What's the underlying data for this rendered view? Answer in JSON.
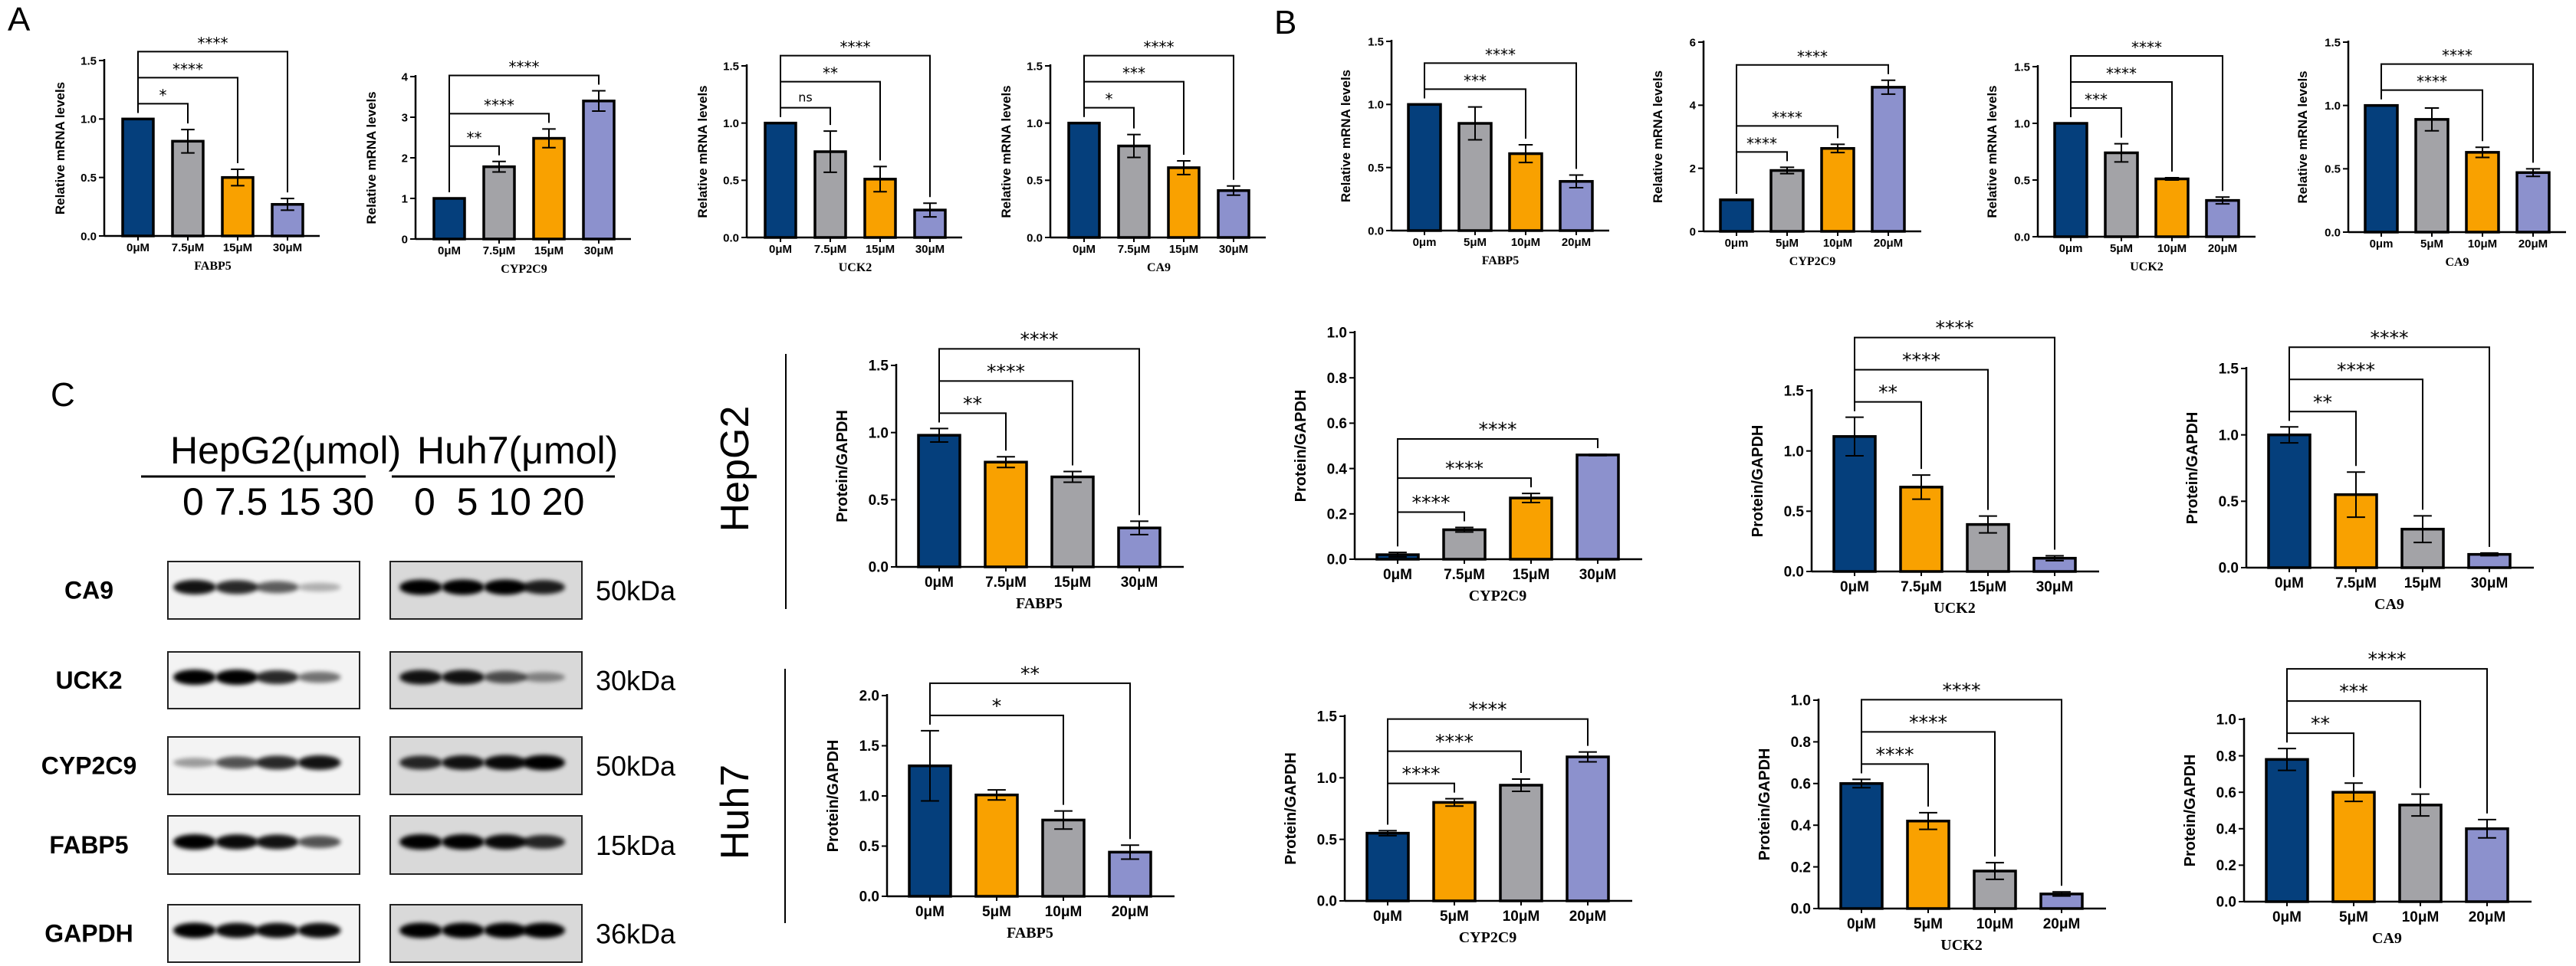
{
  "panels": {
    "a": "A",
    "b": "B",
    "c": "C"
  },
  "colors": {
    "navy": "#053f7c",
    "gray": "#a3a3a7",
    "orange": "#f9a100",
    "lavender": "#8c91cd"
  },
  "row_labels": {
    "hepg2": "HepG2",
    "huh7": "Huh7"
  },
  "blot": {
    "headers": [
      {
        "title": "HepG2(μmol)",
        "doses": "0 7.5 15 30"
      },
      {
        "title": "Huh7(μmol)",
        "doses": "0  5 10 20"
      }
    ],
    "rows": [
      {
        "protein": "CA9",
        "kda": "50kDa",
        "hepg2": [
          0.9,
          0.8,
          0.55,
          0.15
        ],
        "huh7": [
          1,
          1,
          1,
          0.85
        ]
      },
      {
        "protein": "UCK2",
        "kda": "30kDa",
        "hepg2": [
          1,
          1,
          0.8,
          0.45
        ],
        "huh7": [
          0.9,
          0.9,
          0.6,
          0.3
        ]
      },
      {
        "protein": "CYP2C9",
        "kda": "50kDa",
        "hepg2": [
          0.25,
          0.6,
          0.8,
          0.9
        ],
        "huh7": [
          0.8,
          0.9,
          0.95,
          1
        ]
      },
      {
        "protein": "FABP5",
        "kda": "15kDa",
        "hepg2": [
          1,
          0.95,
          0.9,
          0.6
        ],
        "huh7": [
          1,
          1,
          0.95,
          0.8
        ]
      },
      {
        "protein": "GAPDH",
        "kda": "36kDa",
        "hepg2": [
          1,
          0.95,
          0.95,
          0.95
        ],
        "huh7": [
          1,
          1,
          1,
          1
        ]
      }
    ]
  },
  "chart_data": [
    {
      "panel": "A",
      "type": "bar",
      "xlabel": "FABP5",
      "ylabel": "Relative mRNA levels",
      "categories": [
        "0μM",
        "7.5μM",
        "15μM",
        "30μM"
      ],
      "values": [
        1.0,
        0.81,
        0.5,
        0.27
      ],
      "sd": [
        0,
        0.1,
        0.07,
        0.05
      ],
      "ylim": [
        0,
        1.5
      ],
      "yticks": [
        0,
        0.5,
        1.0,
        1.5
      ],
      "ytick_labels": [
        "0.0",
        "0.5",
        "1.0",
        "1.5"
      ],
      "bar_colors": [
        "navy",
        "gray",
        "orange",
        "lavender"
      ],
      "comparisons": [
        {
          "to": 1,
          "label": "*"
        },
        {
          "to": 2,
          "label": "****"
        },
        {
          "to": 3,
          "label": "****"
        }
      ]
    },
    {
      "panel": "A",
      "type": "bar",
      "xlabel": "CYP2C9",
      "ylabel": "Relative mRNA levels",
      "categories": [
        "0μM",
        "7.5μM",
        "15μM",
        "30μM"
      ],
      "values": [
        1.0,
        1.78,
        2.48,
        3.4
      ],
      "sd": [
        0,
        0.13,
        0.23,
        0.25
      ],
      "ylim": [
        0,
        4
      ],
      "yticks": [
        0,
        1,
        2,
        3,
        4
      ],
      "ytick_labels": [
        "0",
        "1",
        "2",
        "3",
        "4"
      ],
      "bar_colors": [
        "navy",
        "gray",
        "orange",
        "lavender"
      ],
      "comparisons": [
        {
          "to": 1,
          "label": "**"
        },
        {
          "to": 2,
          "label": "****"
        },
        {
          "to": 3,
          "label": "****"
        }
      ]
    },
    {
      "panel": "A",
      "type": "bar",
      "xlabel": "UCK2",
      "ylabel": "Relative mRNA levels",
      "categories": [
        "0μM",
        "7.5μM",
        "15μM",
        "30μM"
      ],
      "values": [
        1.0,
        0.75,
        0.51,
        0.24
      ],
      "sd": [
        0,
        0.18,
        0.11,
        0.06
      ],
      "ylim": [
        0,
        1.5
      ],
      "yticks": [
        0,
        0.5,
        1.0,
        1.5
      ],
      "ytick_labels": [
        "0.0",
        "0.5",
        "1.0",
        "1.5"
      ],
      "bar_colors": [
        "navy",
        "gray",
        "orange",
        "lavender"
      ],
      "comparisons": [
        {
          "to": 1,
          "label": "ns"
        },
        {
          "to": 2,
          "label": "**"
        },
        {
          "to": 3,
          "label": "****"
        }
      ]
    },
    {
      "panel": "A",
      "type": "bar",
      "xlabel": "CA9",
      "ylabel": "Relative mRNA levels",
      "categories": [
        "0μM",
        "7.5μM",
        "15μM",
        "30μM"
      ],
      "values": [
        1.0,
        0.8,
        0.61,
        0.41
      ],
      "sd": [
        0,
        0.1,
        0.06,
        0.04
      ],
      "ylim": [
        0,
        1.5
      ],
      "yticks": [
        0,
        0.5,
        1.0,
        1.5
      ],
      "ytick_labels": [
        "0.0",
        "0.5",
        "1.0",
        "1.5"
      ],
      "bar_colors": [
        "navy",
        "gray",
        "orange",
        "lavender"
      ],
      "comparisons": [
        {
          "to": 1,
          "label": "*"
        },
        {
          "to": 2,
          "label": "***"
        },
        {
          "to": 3,
          "label": "****"
        }
      ]
    },
    {
      "panel": "B",
      "type": "bar",
      "xlabel": "FABP5",
      "ylabel": "Relative mRNA levels",
      "categories": [
        "0μm",
        "5μM",
        "10μM",
        "20μM"
      ],
      "values": [
        1.0,
        0.85,
        0.61,
        0.39
      ],
      "sd": [
        0,
        0.13,
        0.07,
        0.05
      ],
      "ylim": [
        0,
        1.5
      ],
      "yticks": [
        0,
        0.5,
        1.0,
        1.5
      ],
      "ytick_labels": [
        "0.0",
        "0.5",
        "1.0",
        "1.5"
      ],
      "bar_colors": [
        "navy",
        "gray",
        "orange",
        "lavender"
      ],
      "comparisons": [
        {
          "to": 2,
          "label": "***"
        },
        {
          "to": 3,
          "label": "****"
        }
      ]
    },
    {
      "panel": "B",
      "type": "bar",
      "xlabel": "CYP2C9",
      "ylabel": "Relative mRNA levels",
      "categories": [
        "0μm",
        "5μM",
        "10μM",
        "20μM"
      ],
      "values": [
        1.0,
        1.93,
        2.63,
        4.57
      ],
      "sd": [
        0,
        0.1,
        0.13,
        0.22
      ],
      "ylim": [
        0,
        6
      ],
      "yticks": [
        0,
        2,
        4,
        6
      ],
      "ytick_labels": [
        "0",
        "2",
        "4",
        "6"
      ],
      "bar_colors": [
        "navy",
        "gray",
        "orange",
        "lavender"
      ],
      "comparisons": [
        {
          "to": 1,
          "label": "****"
        },
        {
          "to": 2,
          "label": "****"
        },
        {
          "to": 3,
          "label": "****"
        }
      ]
    },
    {
      "panel": "B",
      "type": "bar",
      "xlabel": "UCK2",
      "ylabel": "Relative mRNA levels",
      "categories": [
        "0μm",
        "5μM",
        "10μM",
        "20μM"
      ],
      "values": [
        1.0,
        0.74,
        0.51,
        0.32
      ],
      "sd": [
        0,
        0.08,
        0.01,
        0.03
      ],
      "ylim": [
        0,
        1.5
      ],
      "yticks": [
        0,
        0.5,
        1.0,
        1.5
      ],
      "ytick_labels": [
        "0.0",
        "0.5",
        "1.0",
        "1.5"
      ],
      "bar_colors": [
        "navy",
        "gray",
        "orange",
        "lavender"
      ],
      "comparisons": [
        {
          "to": 1,
          "label": "***"
        },
        {
          "to": 2,
          "label": "****"
        },
        {
          "to": 3,
          "label": "****"
        }
      ]
    },
    {
      "panel": "B",
      "type": "bar",
      "xlabel": "CA9",
      "ylabel": "Relative mRNA levels",
      "categories": [
        "0μm",
        "5μM",
        "10μM",
        "20μM"
      ],
      "values": [
        1.0,
        0.89,
        0.63,
        0.47
      ],
      "sd": [
        0,
        0.09,
        0.04,
        0.03
      ],
      "ylim": [
        0,
        1.5
      ],
      "yticks": [
        0,
        0.5,
        1.0,
        1.5
      ],
      "ytick_labels": [
        "0.0",
        "0.5",
        "1.0",
        "1.5"
      ],
      "bar_colors": [
        "navy",
        "gray",
        "orange",
        "lavender"
      ],
      "comparisons": [
        {
          "to": 2,
          "label": "****"
        },
        {
          "to": 3,
          "label": "****"
        }
      ]
    },
    {
      "panel": "C",
      "cell_line": "HepG2",
      "type": "bar",
      "xlabel": "FABP5",
      "ylabel": "Protein/GAPDH",
      "categories": [
        "0μM",
        "7.5μM",
        "15μM",
        "30μM"
      ],
      "values": [
        0.98,
        0.78,
        0.67,
        0.29
      ],
      "sd": [
        0.05,
        0.04,
        0.04,
        0.05
      ],
      "ylim": [
        0,
        1.5
      ],
      "yticks": [
        0,
        0.5,
        1.0,
        1.5
      ],
      "ytick_labels": [
        "0.0",
        "0.5",
        "1.0",
        "1.5"
      ],
      "bar_colors": [
        "navy",
        "orange",
        "gray",
        "lavender"
      ],
      "comparisons": [
        {
          "to": 1,
          "label": "**"
        },
        {
          "to": 2,
          "label": "****"
        },
        {
          "to": 3,
          "label": "****"
        }
      ]
    },
    {
      "panel": "C",
      "cell_line": "HepG2",
      "type": "bar",
      "xlabel": "CYP2C9",
      "ylabel": "Protein/GAPDH",
      "categories": [
        "0μM",
        "7.5μM",
        "15μM",
        "30μM"
      ],
      "values": [
        0.02,
        0.13,
        0.27,
        0.46
      ],
      "sd": [
        0.01,
        0.01,
        0.02,
        0.003
      ],
      "ylim": [
        0,
        1.0
      ],
      "yticks": [
        0,
        0.2,
        0.4,
        0.6,
        0.8,
        1.0
      ],
      "ytick_labels": [
        "0.0",
        "0.2",
        "0.4",
        "0.6",
        "0.8",
        "1.0"
      ],
      "bar_colors": [
        "navy",
        "gray",
        "orange",
        "lavender"
      ],
      "comparisons": [
        {
          "to": 1,
          "label": "****"
        },
        {
          "to": 2,
          "label": "****"
        },
        {
          "to": 3,
          "label": "****"
        }
      ]
    },
    {
      "panel": "C",
      "cell_line": "HepG2",
      "type": "bar",
      "xlabel": "UCK2",
      "ylabel": "Protein/GAPDH",
      "categories": [
        "0μM",
        "7.5μM",
        "15μM",
        "30μM"
      ],
      "values": [
        1.12,
        0.7,
        0.39,
        0.11
      ],
      "sd": [
        0.16,
        0.1,
        0.07,
        0.02
      ],
      "ylim": [
        0,
        1.5
      ],
      "yticks": [
        0,
        0.5,
        1.0,
        1.5
      ],
      "ytick_labels": [
        "0.0",
        "0.5",
        "1.0",
        "1.5"
      ],
      "bar_colors": [
        "navy",
        "orange",
        "gray",
        "lavender"
      ],
      "comparisons": [
        {
          "to": 1,
          "label": "**"
        },
        {
          "to": 2,
          "label": "****"
        },
        {
          "to": 3,
          "label": "****"
        }
      ]
    },
    {
      "panel": "C",
      "cell_line": "HepG2",
      "type": "bar",
      "xlabel": "CA9",
      "ylabel": "Protein/GAPDH",
      "categories": [
        "0μM",
        "7.5μM",
        "15μM",
        "30μM"
      ],
      "values": [
        1.0,
        0.55,
        0.29,
        0.1
      ],
      "sd": [
        0.06,
        0.17,
        0.1,
        0.01
      ],
      "ylim": [
        0,
        1.5
      ],
      "yticks": [
        0,
        0.5,
        1.0,
        1.5
      ],
      "ytick_labels": [
        "0.0",
        "0.5",
        "1.0",
        "1.5"
      ],
      "bar_colors": [
        "navy",
        "orange",
        "gray",
        "lavender"
      ],
      "comparisons": [
        {
          "to": 1,
          "label": "**"
        },
        {
          "to": 2,
          "label": "****"
        },
        {
          "to": 3,
          "label": "****"
        }
      ]
    },
    {
      "panel": "C",
      "cell_line": "Huh7",
      "type": "bar",
      "xlabel": "FABP5",
      "ylabel": "Protein/GAPDH",
      "categories": [
        "0μM",
        "5μM",
        "10μM",
        "20μM"
      ],
      "values": [
        1.3,
        1.01,
        0.76,
        0.44
      ],
      "sd": [
        0.35,
        0.05,
        0.09,
        0.07
      ],
      "ylim": [
        0,
        2.0
      ],
      "yticks": [
        0,
        0.5,
        1.0,
        1.5,
        2.0
      ],
      "ytick_labels": [
        "0.0",
        "0.5",
        "1.0",
        "1.5",
        "2.0"
      ],
      "bar_colors": [
        "navy",
        "orange",
        "gray",
        "lavender"
      ],
      "comparisons": [
        {
          "to": 2,
          "label": "*"
        },
        {
          "to": 3,
          "label": "**"
        }
      ]
    },
    {
      "panel": "C",
      "cell_line": "Huh7",
      "type": "bar",
      "xlabel": "CYP2C9",
      "ylabel": "Protein/GAPDH",
      "categories": [
        "0μM",
        "5μM",
        "10μM",
        "20μM"
      ],
      "values": [
        0.55,
        0.8,
        0.94,
        1.17
      ],
      "sd": [
        0.02,
        0.03,
        0.05,
        0.04
      ],
      "ylim": [
        0,
        1.5
      ],
      "yticks": [
        0,
        0.5,
        1.0,
        1.5
      ],
      "ytick_labels": [
        "0.0",
        "0.5",
        "1.0",
        "1.5"
      ],
      "bar_colors": [
        "navy",
        "orange",
        "gray",
        "lavender"
      ],
      "comparisons": [
        {
          "to": 1,
          "label": "****"
        },
        {
          "to": 2,
          "label": "****"
        },
        {
          "to": 3,
          "label": "****"
        }
      ]
    },
    {
      "panel": "C",
      "cell_line": "Huh7",
      "type": "bar",
      "xlabel": "UCK2",
      "ylabel": "Protein/GAPDH",
      "categories": [
        "0μM",
        "5μM",
        "10μM",
        "20μM"
      ],
      "values": [
        0.6,
        0.42,
        0.18,
        0.07
      ],
      "sd": [
        0.02,
        0.04,
        0.04,
        0.01
      ],
      "ylim": [
        0,
        1.0
      ],
      "yticks": [
        0,
        0.2,
        0.4,
        0.6,
        0.8,
        1.0
      ],
      "ytick_labels": [
        "0.0",
        "0.2",
        "0.4",
        "0.6",
        "0.8",
        "1.0"
      ],
      "bar_colors": [
        "navy",
        "orange",
        "gray",
        "lavender"
      ],
      "comparisons": [
        {
          "to": 1,
          "label": "****"
        },
        {
          "to": 2,
          "label": "****"
        },
        {
          "to": 3,
          "label": "****"
        }
      ]
    },
    {
      "panel": "C",
      "cell_line": "Huh7",
      "type": "bar",
      "xlabel": "CA9",
      "ylabel": "Protein/GAPDH",
      "categories": [
        "0μM",
        "5μM",
        "10μM",
        "20μM"
      ],
      "values": [
        0.78,
        0.6,
        0.53,
        0.4
      ],
      "sd": [
        0.06,
        0.05,
        0.06,
        0.05
      ],
      "ylim": [
        0,
        1.0
      ],
      "yticks": [
        0,
        0.2,
        0.4,
        0.6,
        0.8,
        1.0
      ],
      "ytick_labels": [
        "0.0",
        "0.2",
        "0.4",
        "0.6",
        "0.8",
        "1.0"
      ],
      "bar_colors": [
        "navy",
        "orange",
        "gray",
        "lavender"
      ],
      "comparisons": [
        {
          "to": 1,
          "label": "**"
        },
        {
          "to": 2,
          "label": "***"
        },
        {
          "to": 3,
          "label": "****"
        }
      ]
    }
  ]
}
